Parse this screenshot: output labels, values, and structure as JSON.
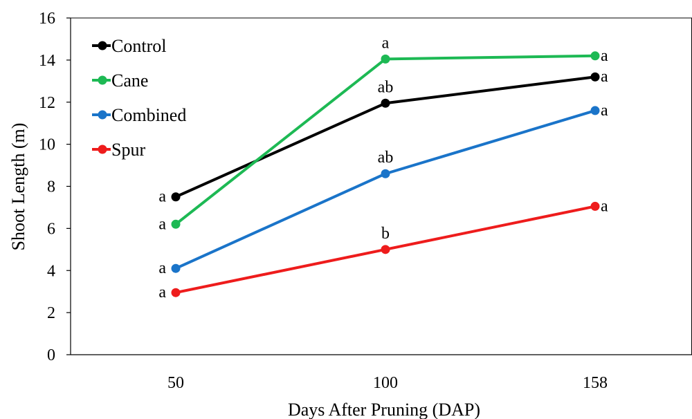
{
  "chart_data": {
    "type": "line",
    "title": "",
    "xlabel": "Days After Pruning (DAP)",
    "ylabel": "Shoot Length (m)",
    "categories": [
      "50",
      "100",
      "158"
    ],
    "ylim": [
      0,
      16
    ],
    "yticks": [
      0,
      2,
      4,
      6,
      8,
      10,
      12,
      14,
      16
    ],
    "grid": false,
    "legend_position": "top-left",
    "series": [
      {
        "name": "Control",
        "color": "#000000",
        "values": [
          7.5,
          11.95,
          13.2
        ],
        "labels": [
          "a",
          "ab",
          "a"
        ]
      },
      {
        "name": "Cane",
        "color": "#1db954",
        "values": [
          6.2,
          14.05,
          14.2
        ],
        "labels": [
          "a",
          "a",
          "a"
        ]
      },
      {
        "name": "Combined",
        "color": "#1a74c9",
        "values": [
          4.1,
          8.6,
          11.6
        ],
        "labels": [
          "a",
          "ab",
          "a"
        ]
      },
      {
        "name": "Spur",
        "color": "#ee1c1c",
        "values": [
          2.95,
          5.0,
          7.05
        ],
        "labels": [
          "a",
          "b",
          "a"
        ]
      }
    ]
  }
}
